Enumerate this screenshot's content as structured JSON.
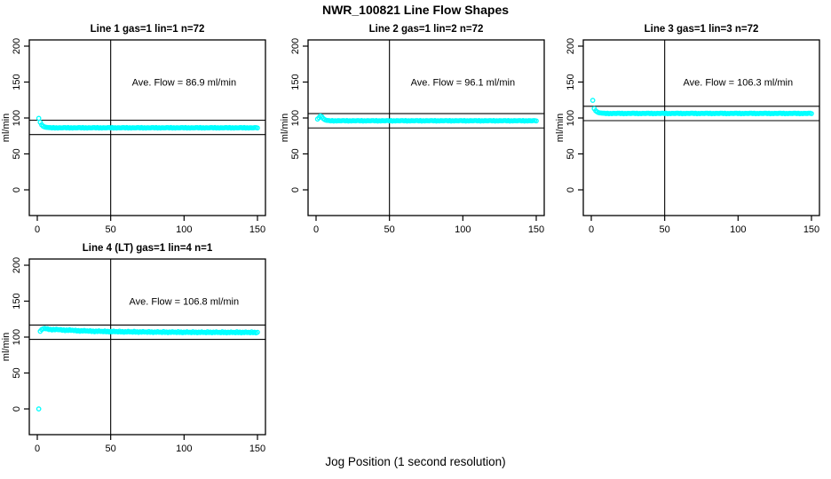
{
  "page": {
    "title": "NWR_100821  Line Flow Shapes",
    "xlabel": "Jog Position (1 second resolution)",
    "background_color": "#ffffff",
    "point_color": "#00ffff",
    "axis_color": "#000000"
  },
  "chart_data": [
    {
      "type": "scatter",
      "title": "Line 1 gas=1 lin=1 n=72",
      "annotation": "Ave. Flow =  86.9  ml/min",
      "ave_flow": 86.9,
      "hlines": [
        96.9,
        76.9
      ],
      "vline_x": 50,
      "xticks": [
        0,
        50,
        100,
        150
      ],
      "yticks": [
        0,
        50,
        100,
        150,
        200
      ],
      "ylabel": "ml/min",
      "xlim": [
        0,
        150
      ],
      "ylim": [
        0,
        200
      ],
      "x_start": 1,
      "y": [
        99.5,
        94.0,
        90.5,
        88.5,
        87.5,
        87.0,
        86.8,
        86.6,
        86.6,
        86.1,
        86.7,
        85.9,
        86.4,
        86.0,
        86.5,
        86.3,
        86.2,
        86.6,
        86.6,
        86.1,
        86.7,
        85.9,
        86.4,
        86.0,
        86.5,
        86.3,
        86.2,
        86.6,
        86.6,
        86.1,
        86.7,
        85.9,
        86.4,
        86.0,
        86.5,
        86.3,
        86.2,
        86.6,
        86.6,
        86.1,
        86.7,
        85.9,
        86.4,
        86.0,
        86.5,
        86.3,
        86.2,
        86.6,
        86.6,
        86.1,
        86.7,
        85.9,
        86.4,
        86.0,
        86.5,
        86.3,
        86.2,
        86.6,
        86.6,
        86.1,
        86.7,
        85.9,
        86.4,
        86.0,
        86.5,
        86.3,
        86.2,
        86.6,
        86.6,
        86.1,
        86.7,
        85.9,
        86.4,
        86.0,
        86.5,
        86.3,
        86.2,
        86.6,
        86.6,
        86.1,
        86.7,
        85.9,
        86.4,
        86.0,
        86.5,
        86.3,
        86.2,
        86.6,
        86.6,
        86.1,
        86.7,
        85.9,
        86.4,
        86.0,
        86.5,
        86.3,
        86.2,
        86.6,
        86.6,
        86.1,
        86.7,
        85.9,
        86.4,
        86.0,
        86.5,
        86.3,
        86.2,
        86.6,
        86.6,
        86.1,
        86.7,
        85.9,
        86.4,
        86.0,
        86.5,
        86.3,
        86.2,
        86.6,
        86.6,
        86.1,
        86.7,
        85.9,
        86.4,
        86.0,
        86.5,
        86.3,
        86.2,
        86.6,
        86.6,
        86.1,
        86.7,
        85.9,
        86.4,
        86.0,
        86.5,
        86.3,
        86.2,
        86.6,
        86.6,
        86.1,
        86.7,
        85.9,
        86.4,
        86.0,
        86.5,
        86.3,
        86.2,
        86.6,
        86.6,
        86.1
      ]
    },
    {
      "type": "scatter",
      "title": "Line 2 gas=1 lin=2 n=72",
      "annotation": "Ave. Flow =  96.1  ml/min",
      "ave_flow": 96.1,
      "hlines": [
        106.1,
        86.1
      ],
      "vline_x": 50,
      "xticks": [
        0,
        50,
        100,
        150
      ],
      "yticks": [
        0,
        50,
        100,
        150,
        200
      ],
      "ylabel": "ml/min",
      "xlim": [
        0,
        150
      ],
      "ylim": [
        0,
        200
      ],
      "x_start": 1,
      "y": [
        98.5,
        100.5,
        102.8,
        101.5,
        99.0,
        97.5,
        96.8,
        96.5,
        96.4,
        95.9,
        96.5,
        95.7,
        96.2,
        95.8,
        96.3,
        96.1,
        96.0,
        96.4,
        96.4,
        95.9,
        96.5,
        95.7,
        96.2,
        95.8,
        96.3,
        96.1,
        96.0,
        96.4,
        96.4,
        95.9,
        96.5,
        95.7,
        96.2,
        95.8,
        96.3,
        96.1,
        96.0,
        96.4,
        96.4,
        95.9,
        96.5,
        95.7,
        96.2,
        95.8,
        96.3,
        96.1,
        96.0,
        96.4,
        96.4,
        95.9,
        96.5,
        95.7,
        96.2,
        95.8,
        96.3,
        96.1,
        96.0,
        96.4,
        96.4,
        95.9,
        96.5,
        95.7,
        96.2,
        95.8,
        96.3,
        96.1,
        96.0,
        96.4,
        96.4,
        95.9,
        96.5,
        95.7,
        96.2,
        95.8,
        96.3,
        96.1,
        96.0,
        96.4,
        96.4,
        95.9,
        96.5,
        95.7,
        96.2,
        95.8,
        96.3,
        96.1,
        96.0,
        96.4,
        96.4,
        95.9,
        96.5,
        95.7,
        96.2,
        95.8,
        96.3,
        96.1,
        96.0,
        96.4,
        96.4,
        95.9,
        96.5,
        95.7,
        96.2,
        95.8,
        96.3,
        96.1,
        96.0,
        96.4,
        96.4,
        95.9,
        96.5,
        95.7,
        96.2,
        95.8,
        96.3,
        96.1,
        96.0,
        96.4,
        96.4,
        95.9,
        96.5,
        95.7,
        96.2,
        95.8,
        96.3,
        96.1,
        96.0,
        96.4,
        96.4,
        95.9,
        96.5,
        95.7,
        96.2,
        95.8,
        96.3,
        96.1,
        96.0,
        96.4,
        96.4,
        95.9,
        96.5,
        95.7,
        96.2,
        95.8,
        96.3,
        96.1,
        96.0,
        96.4,
        96.4,
        95.9
      ]
    },
    {
      "type": "scatter",
      "title": "Line 3 gas=1 lin=3 n=72",
      "annotation": "Ave. Flow =  106.3  ml/min",
      "ave_flow": 106.3,
      "hlines": [
        116.3,
        96.3
      ],
      "vline_x": 50,
      "xticks": [
        0,
        50,
        100,
        150
      ],
      "yticks": [
        0,
        50,
        100,
        150,
        200
      ],
      "ylabel": "ml/min",
      "xlim": [
        0,
        150
      ],
      "ylim": [
        0,
        200
      ],
      "x_start": 1,
      "y": [
        124.5,
        113.0,
        110.0,
        108.5,
        107.5,
        107.0,
        106.8,
        106.6,
        106.6,
        106.1,
        106.7,
        105.9,
        106.4,
        106.0,
        106.5,
        106.3,
        106.2,
        106.6,
        106.6,
        106.1,
        106.7,
        105.9,
        106.4,
        106.0,
        106.5,
        106.3,
        106.2,
        106.6,
        106.6,
        106.1,
        106.7,
        105.9,
        106.4,
        106.0,
        106.5,
        106.3,
        106.2,
        106.6,
        106.6,
        106.1,
        106.7,
        105.9,
        106.4,
        106.0,
        106.5,
        106.3,
        106.2,
        106.6,
        106.6,
        106.1,
        106.7,
        105.9,
        106.4,
        106.0,
        106.5,
        106.3,
        106.2,
        106.6,
        106.6,
        106.1,
        106.7,
        105.9,
        106.4,
        106.0,
        106.5,
        106.3,
        106.2,
        106.6,
        106.6,
        106.1,
        106.7,
        105.9,
        106.4,
        106.0,
        106.5,
        106.3,
        106.2,
        106.6,
        106.6,
        106.1,
        106.7,
        105.9,
        106.4,
        106.0,
        106.5,
        106.3,
        106.2,
        106.6,
        106.6,
        106.1,
        106.7,
        105.9,
        106.4,
        106.0,
        106.5,
        106.3,
        106.2,
        106.6,
        106.6,
        106.1,
        106.7,
        105.9,
        106.4,
        106.0,
        106.5,
        106.3,
        106.2,
        106.6,
        106.6,
        106.1,
        106.7,
        105.9,
        106.4,
        106.0,
        106.5,
        106.3,
        106.2,
        106.6,
        106.6,
        106.1,
        106.7,
        105.9,
        106.4,
        106.0,
        106.5,
        106.3,
        106.2,
        106.6,
        106.6,
        106.1,
        106.7,
        105.9,
        106.4,
        106.0,
        106.5,
        106.3,
        106.2,
        106.6,
        106.6,
        106.1,
        106.7,
        105.9,
        106.4,
        106.0,
        106.5,
        106.3,
        106.2,
        106.6,
        106.6,
        106.1
      ]
    },
    {
      "type": "scatter",
      "title": "Line 4 (LT) gas=1 lin=4 n=1",
      "annotation": "Ave. Flow =  106.8  ml/min",
      "ave_flow": 106.8,
      "hlines": [
        116.8,
        96.8
      ],
      "vline_x": 50,
      "xticks": [
        0,
        50,
        100,
        150
      ],
      "yticks": [
        0,
        50,
        100,
        150,
        200
      ],
      "ylabel": "ml/min",
      "xlim": [
        0,
        150
      ],
      "ylim": [
        0,
        200
      ],
      "x_start": 1,
      "y": [
        0.0,
        108.0,
        110.5,
        111.5,
        112.0,
        111.5,
        111.6,
        110.4,
        110.9,
        109.9,
        110.8,
        110.1,
        111.0,
        110.3,
        110.2,
        110.5,
        109.4,
        110.0,
        108.9,
        109.9,
        109.2,
        110.2,
        109.3,
        109.6,
        108.9,
        109.6,
        108.4,
        109.1,
        108.0,
        109.0,
        108.3,
        109.3,
        108.4,
        108.7,
        108.1,
        108.9,
        107.7,
        108.4,
        107.4,
        108.3,
        107.7,
        108.7,
        107.8,
        108.1,
        107.5,
        108.5,
        107.3,
        108.0,
        107.0,
        107.9,
        107.3,
        108.3,
        107.4,
        107.7,
        107.1,
        108.2,
        107.0,
        107.7,
        106.7,
        107.6,
        107.0,
        108.0,
        107.1,
        107.4,
        106.8,
        108.0,
        106.8,
        107.5,
        106.5,
        107.4,
        106.8,
        107.8,
        106.9,
        107.2,
        106.6,
        107.8,
        106.6,
        107.3,
        106.3,
        107.2,
        106.6,
        107.6,
        106.7,
        107.0,
        106.4,
        107.7,
        106.5,
        107.2,
        106.2,
        107.1,
        106.5,
        107.5,
        106.6,
        106.9,
        106.3,
        107.6,
        106.4,
        107.1,
        106.1,
        107.0,
        106.4,
        107.4,
        106.5,
        106.8,
        106.2,
        107.5,
        106.3,
        107.0,
        106.0,
        106.9,
        106.3,
        107.3,
        106.4,
        106.7,
        106.1,
        107.5,
        106.3,
        107.0,
        106.0,
        106.9,
        106.3,
        107.3,
        106.4,
        106.7,
        106.1,
        107.4,
        106.2,
        106.9,
        105.9,
        106.8,
        106.2,
        107.2,
        106.3,
        106.6,
        106.0,
        107.4,
        106.2,
        106.9,
        105.9,
        106.8,
        106.2,
        107.2,
        106.3,
        106.6,
        106.0,
        107.3,
        106.1,
        106.8,
        105.8,
        106.7
      ]
    }
  ]
}
